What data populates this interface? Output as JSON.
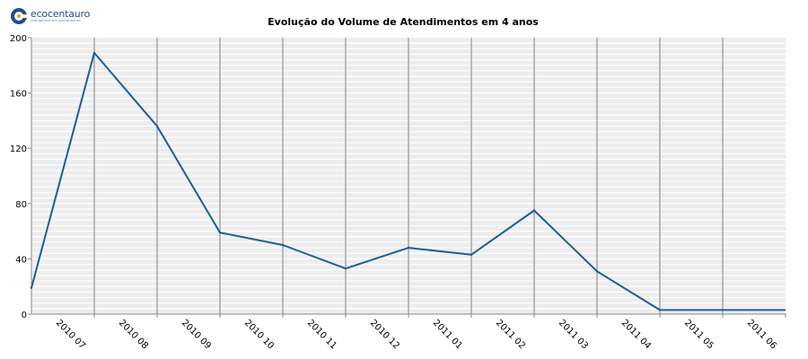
{
  "brand": {
    "name": "ecocentauro",
    "tagline": "inteligência em atendimento",
    "colors": {
      "primary": "#1f4e8c",
      "accent": "#f5a623"
    }
  },
  "chart_data": {
    "type": "line",
    "title": "Evolução do Volume de Atendimentos em 4 anos",
    "xlabel": "",
    "ylabel": "",
    "categories": [
      "2010 07",
      "2010 08",
      "2010 09",
      "2010 10",
      "2010 11",
      "2010 12",
      "2011 01",
      "2011 02",
      "2011 03",
      "2011 04",
      "2011 05",
      "2011 06"
    ],
    "ylim": [
      0,
      200
    ],
    "yticks": [
      0,
      40,
      80,
      120,
      160,
      200
    ],
    "grid": true,
    "series": [
      {
        "color": "#1a5e9c",
        "points": [
          {
            "x": "2010 07",
            "y": 19
          },
          {
            "x": "2010 08",
            "y": 189
          },
          {
            "x": "2010 09",
            "y": 136
          },
          {
            "x": "2010 10",
            "y": 59
          },
          {
            "x": "2010 11",
            "y": 50
          },
          {
            "x": "2010 12",
            "y": 33
          },
          {
            "x": "2011 01",
            "y": 48
          },
          {
            "x": "2011 02",
            "y": 43
          },
          {
            "x": "2011 03",
            "y": 75
          },
          {
            "x": "2011 04",
            "y": 31
          },
          {
            "x": "2011 05",
            "y": 3
          },
          {
            "x": "2011 06",
            "y": 3
          }
        ]
      }
    ]
  }
}
